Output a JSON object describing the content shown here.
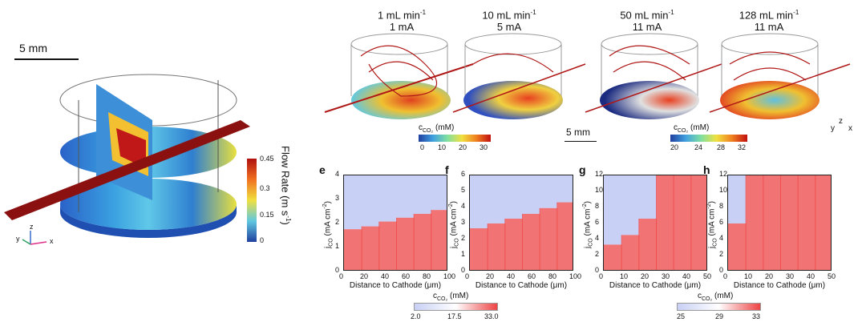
{
  "left_panel": {
    "scale_bar_label": "5 mm",
    "colorbar": {
      "title": "Flow Rate (m s",
      "title_sup": "-1",
      "title_end": ")",
      "ticks": [
        "0.45",
        "0.3",
        "0.15",
        "0"
      ]
    },
    "axes": {
      "x": "x",
      "y": "y",
      "z": "z"
    }
  },
  "simulations": [
    {
      "flow": "1 mL min",
      "flow_sup": "-1",
      "current": "1 mA"
    },
    {
      "flow": "10 mL min",
      "flow_sup": "-1",
      "current": "5 mA"
    },
    {
      "flow": "50 mL min",
      "flow_sup": "-1",
      "current": "11 mA"
    },
    {
      "flow": "128 mL min",
      "flow_sup": "-1",
      "current": "11 mA"
    }
  ],
  "sim_colorbars": [
    {
      "label": "c",
      "label_sub": "CO₂",
      "unit": " (mM)",
      "ticks": [
        "0",
        "10",
        "20",
        "30"
      ]
    },
    {
      "label": "c",
      "label_sub": "CO₂",
      "unit": " (mM)",
      "ticks": [
        "20",
        "24",
        "28",
        "32"
      ]
    }
  ],
  "mid_scale_bar_label": "5 mm",
  "mid_axes": {
    "x": "x",
    "y": "y",
    "z": "z"
  },
  "heatmaps": [
    {
      "letter": "e",
      "xlabel": "Distance to Cathode (μm)",
      "ylabel": "j",
      "ylabel_sub": "CO",
      "yunit": " (mA cm",
      "yunit_sup": "-2",
      "yunit_end": ")",
      "xticks": [
        "0",
        "20",
        "40",
        "60",
        "80",
        "100"
      ],
      "yticks": [
        "0",
        "1",
        "2",
        "3",
        "4"
      ],
      "boundary": [
        0.44,
        0.47,
        0.52,
        0.56,
        0.6,
        0.64
      ]
    },
    {
      "letter": "f",
      "xlabel": "Distance to Cathode (μm)",
      "ylabel": "j",
      "ylabel_sub": "CO",
      "yunit": " (mA cm",
      "yunit_sup": "-2",
      "yunit_end": ")",
      "xticks": [
        "0",
        "20",
        "40",
        "60",
        "80",
        "100"
      ],
      "yticks": [
        "0",
        "1",
        "2",
        "3",
        "4",
        "5",
        "6"
      ],
      "boundary": [
        0.45,
        0.5,
        0.55,
        0.6,
        0.66,
        0.72
      ]
    },
    {
      "letter": "g",
      "xlabel": "Distance to Cathode (μm)",
      "ylabel": "j",
      "ylabel_sub": "CO",
      "yunit": " (mA cm",
      "yunit_sup": "-2",
      "yunit_end": ")",
      "xticks": [
        "0",
        "10",
        "20",
        "30",
        "40",
        "50"
      ],
      "yticks": [
        "0",
        "2",
        "4",
        "6",
        "8",
        "10",
        "12"
      ],
      "boundary": [
        0.28,
        0.38,
        0.55,
        1.0,
        1.0,
        1.0
      ]
    },
    {
      "letter": "h",
      "xlabel": "Distance to Cathode (μm)",
      "ylabel": "j",
      "ylabel_sub": "CO",
      "yunit": " (mA cm",
      "yunit_sup": "-2",
      "yunit_end": ")",
      "xticks": [
        "0",
        "10",
        "20",
        "30",
        "40",
        "50"
      ],
      "yticks": [
        "0",
        "2",
        "4",
        "6",
        "8",
        "10",
        "12"
      ],
      "boundary": [
        0.5,
        1.0,
        1.0,
        1.0,
        1.0,
        1.0
      ]
    }
  ],
  "bottom_colorbars": [
    {
      "label": "c",
      "label_sub": "CO₂",
      "unit": " (mM)",
      "ticks": [
        "2.0",
        "17.5",
        "33.0"
      ]
    },
    {
      "label": "c",
      "label_sub": "CO₂",
      "unit": " (mM)",
      "ticks": [
        "25",
        "29",
        "33"
      ]
    }
  ],
  "colors": {
    "low": "#c8d0f5",
    "high": "#ee4444",
    "mid": "#ffffff",
    "flow_dark": "#8b1010"
  }
}
